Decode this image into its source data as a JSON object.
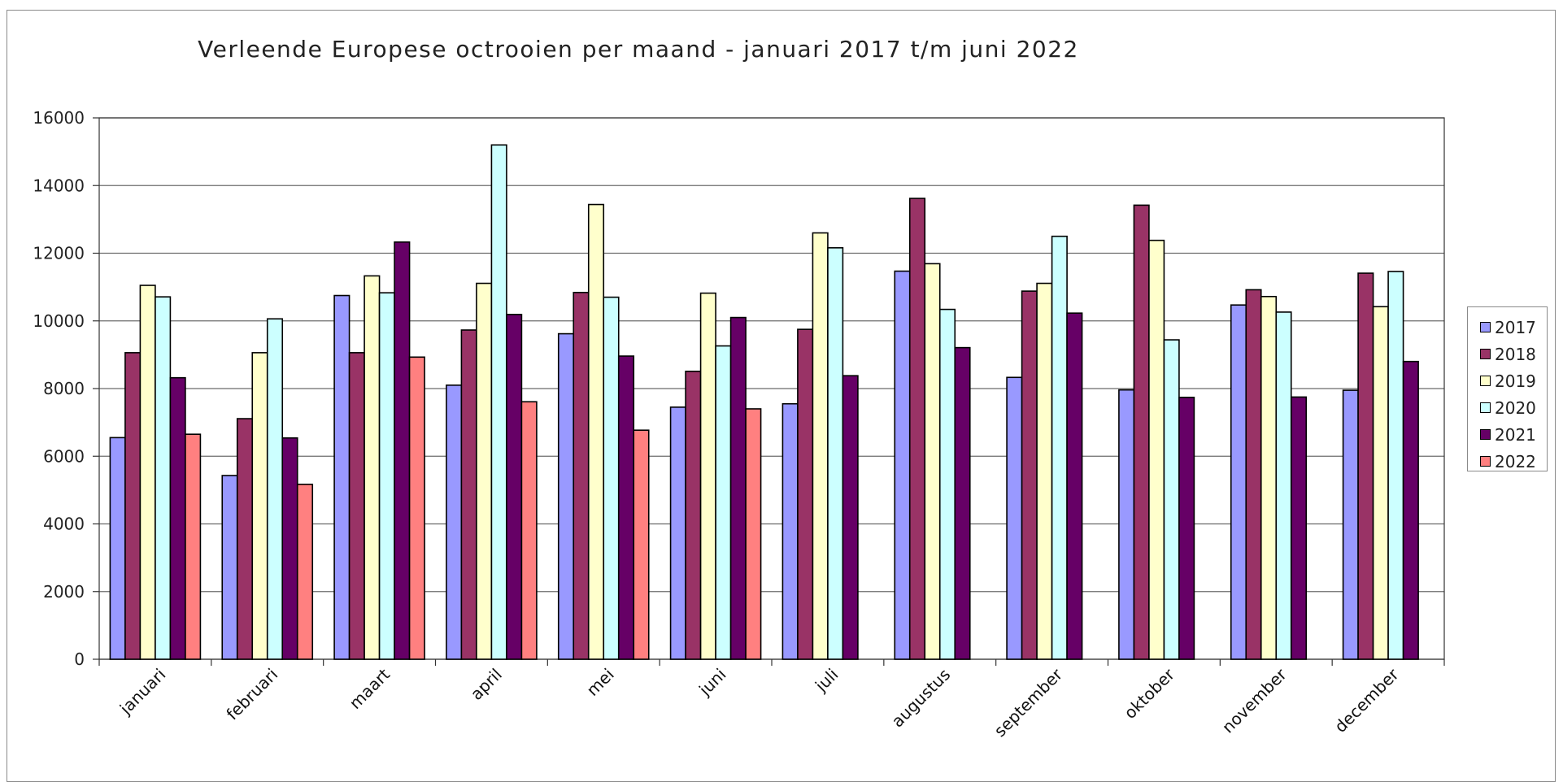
{
  "chart_data": {
    "type": "bar",
    "title": "Verleende Europese octrooien per maand - januari 2017 t/m juni 2022",
    "xlabel": "",
    "ylabel": "",
    "ylim": [
      0,
      16000
    ],
    "yticks": [
      0,
      2000,
      4000,
      6000,
      8000,
      10000,
      12000,
      14000,
      16000
    ],
    "grid": true,
    "legend_position": "right",
    "categories": [
      "januari",
      "februari",
      "maart",
      "april",
      "mei",
      "juni",
      "juli",
      "augustus",
      "september",
      "oktober",
      "november",
      "december"
    ],
    "series": [
      {
        "name": "2017",
        "color": "#9999ff",
        "values": [
          6550,
          5430,
          10750,
          8100,
          9620,
          7450,
          7550,
          11470,
          8330,
          7960,
          10470,
          7950
        ]
      },
      {
        "name": "2018",
        "color": "#993366",
        "values": [
          9060,
          7110,
          9060,
          9730,
          10840,
          8510,
          9750,
          13620,
          10880,
          13420,
          10920,
          11410
        ]
      },
      {
        "name": "2019",
        "color": "#ffffcc",
        "values": [
          11050,
          9060,
          11330,
          11110,
          13440,
          10820,
          12600,
          11690,
          11110,
          12380,
          10720,
          10420
        ]
      },
      {
        "name": "2020",
        "color": "#ccffff",
        "values": [
          10710,
          10060,
          10830,
          15200,
          10700,
          9260,
          12160,
          10340,
          12500,
          9440,
          10260,
          11460
        ]
      },
      {
        "name": "2021",
        "color": "#660066",
        "values": [
          8320,
          6540,
          12330,
          10190,
          8960,
          10100,
          8380,
          9210,
          10230,
          7740,
          7750,
          8800
        ]
      },
      {
        "name": "2022",
        "color": "#ff8080",
        "values": [
          6650,
          5170,
          8930,
          7610,
          6770,
          7400,
          null,
          null,
          null,
          null,
          null,
          null
        ]
      }
    ]
  }
}
